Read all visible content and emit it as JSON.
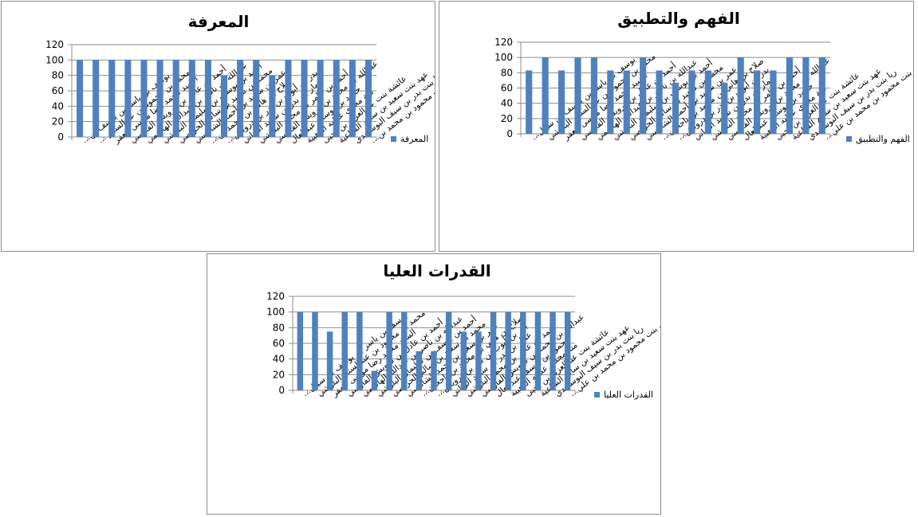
{
  "chart_data": [
    {
      "type": "bar",
      "title": "المعرفة",
      "ylim": [
        0,
        120
      ],
      "yticks": [
        0,
        20,
        40,
        60,
        80,
        100,
        120
      ],
      "grid": true,
      "legend_position": "right",
      "series": [
        {
          "name": "المعرفة",
          "color": "#4f81bd",
          "values": [
            100,
            100,
            100,
            100,
            100,
            100,
            100,
            100,
            100,
            80,
            100,
            100,
            80,
            100,
            100,
            100,
            100,
            100,
            100
          ]
        }
      ],
      "categories": [
        "يوسف بن ياسر بن يوسف بن...",
        "محمد بن محمود بن عبدالستار ...",
        "السيد محمد رضا موسى جعفر",
        "أحمد بن عادل بن درويش الفارسي",
        "عبدالله بن ناصر بن عبدالله الهاشمي",
        "أحمد بن يوسف بن سليمان البلوشي",
        "محمد بن سعيد بن سالم الحراصي",
        "عمر بن سعيد بن أحمد الشامسي",
        "صلاح بن هاني بن محمد بن...",
        "بدر بن أيوب بن بدر بن درويش...",
        "عمار بن بدر بن سعيد الرياني",
        "أحمد بن عامر بن محمد البلوشي",
        "عبدالله بن محمد بن درويش الفارسي",
        "حمود بن يوسف عبدالعال",
        "منة مجدي عطيه الذهبية",
        "عائشة بنت عبدالعزيز بن يحيى",
        "عهد بنت سعيد بن سالم الشاعية",
        "ريا بنت بدر بن سيف البوسعيدي",
        "بشرى بنت محمود بن محمد بن..."
      ]
    },
    {
      "type": "bar",
      "title": "الفهم والتطبيق",
      "ylim": [
        0,
        120
      ],
      "yticks": [
        0,
        20,
        40,
        60,
        80,
        100,
        120
      ],
      "grid": true,
      "legend_position": "right",
      "series": [
        {
          "name": "الفهم والتطبيق",
          "color": "#4f81bd",
          "values": [
            83,
            100,
            83,
            100,
            100,
            83,
            83,
            100,
            83,
            67,
            83,
            83,
            67,
            100,
            83,
            83,
            100,
            100,
            100
          ]
        }
      ],
      "categories": [
        "يوسف بن ياسر بن يوسف بن سيبل...",
        "محمد بن محمود بن عبدالستار البلوشي",
        "السيد محمد رضا موسى جعفر",
        "أحمد بن عادل بن درويش الفارسي",
        "عبدالله بن ناصر بن عبدالله الهاشمي",
        "أحمد بن يوسف بن سليمان البلوشي",
        "محمد بن سعيد بن سالم الحراصي",
        "عمر بن سعيد بن أحمد الشامسي",
        "صلاح بن هاني بن محمد بن ناجحان...",
        "بدر بن أيوب بن بدر بن درويش...",
        "عمار بن بدر بن سعيد الرياني",
        "أحمد بن عامر بن محمد البلوشي",
        "عبدالله بن محمد بن درويش الفارسي",
        "حمود بن يوسف عبدالعال",
        "منة مجدي عطيه الذهبية",
        "عائشة بنت عبدالعزيز بن يحيى",
        "عهد بنت سعيد بن سالم الشاعية",
        "ريا بنت بدر بن سيف البوسعيدي",
        "بشرى بنت محمود بن محمد بن علي..."
      ]
    },
    {
      "type": "bar",
      "title": "القدرات العليا",
      "ylim": [
        0,
        120
      ],
      "yticks": [
        0,
        20,
        40,
        60,
        80,
        100,
        120
      ],
      "grid": true,
      "legend_position": "right",
      "series": [
        {
          "name": "القدرات العليا",
          "color": "#4f81bd",
          "values": [
            100,
            100,
            75,
            100,
            100,
            25,
            100,
            100,
            50,
            50,
            100,
            75,
            75,
            100,
            100,
            100,
            100,
            100,
            100
          ]
        }
      ],
      "categories": [
        "يوسف بن ياسر بن يوسف بن سيبل...",
        "محمد بن محمود بن عبدالستار البلوشي",
        "السيد محمد رضا موسى جعفر",
        "أحمد بن عادل بن درويش الفارسي",
        "عبدالله بن ناصر بن عبدالله الهاشمي",
        "أحمد بن يوسف بن سليمان البلوشي",
        "محمد بن سعيد بن سالم الحراصي",
        "عمر بن سعيد بن أحمد الشامسي",
        "صلاح بن هاني بن محمد بن ناجحان...",
        "بدر بن أيوب بن بدر بن درويش...",
        "عمار بن بدر بن سعيد الرياني",
        "أحمد بن عامر بن محمد البلوشي",
        "عبدالله بن محمد بن درويش الفارسي",
        "حمود بن يوسف عبدالعال",
        "منة مجدي عطيه الذهبية",
        "عائشة بنت عبدالعزيز بن يحيى",
        "عهد بنت سعيد بن سالم الشاعية",
        "ريا بنت بدر بن سيف البوسعيدي",
        "بشرى بنت محمود بن محمد بن علي..."
      ]
    }
  ]
}
